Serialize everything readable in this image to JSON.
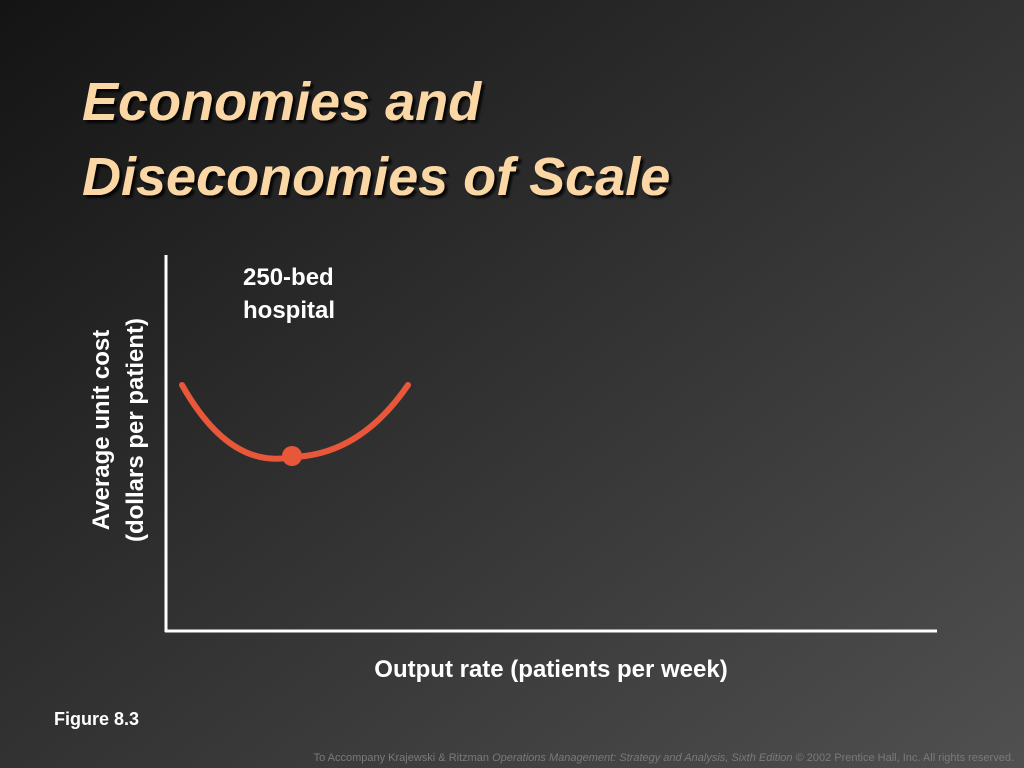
{
  "header": {
    "title_lines": [
      "Economies and",
      "Diseconomies of Scale"
    ]
  },
  "diagram": {
    "curve_label_lines": [
      "250-bed",
      "hospital"
    ],
    "y_axis_label_lines": [
      "Average unit cost",
      "(dollars per patient)"
    ],
    "x_axis_label": "Output rate (patients per week)"
  },
  "figure_label": "Figure 8.3",
  "footer": {
    "prefix": "To Accompany Krajewski & Ritzman ",
    "book": "Operations Management: Strategy and Analysis, Sixth Edition",
    "suffix": " © 2002 Prentice Hall, Inc. All rights reserved."
  }
}
